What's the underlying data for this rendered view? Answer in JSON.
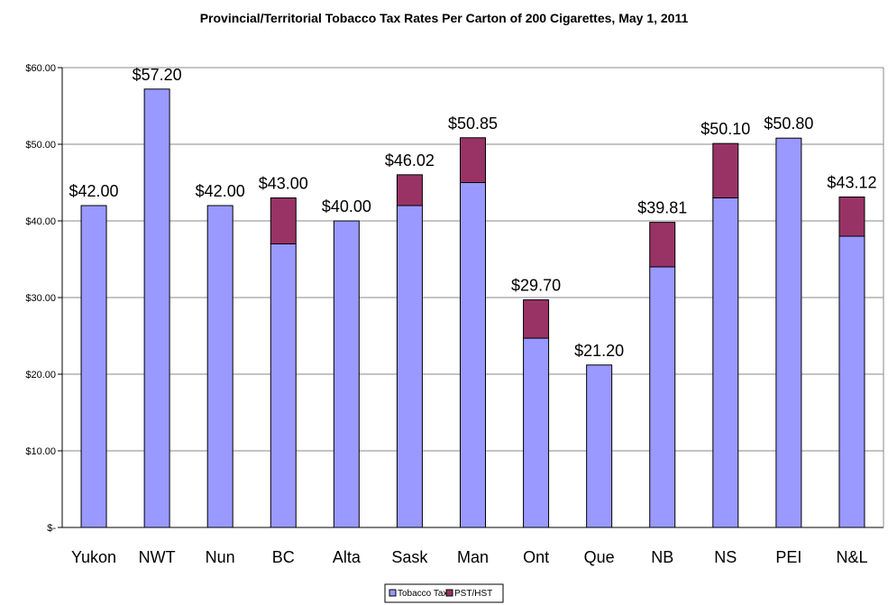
{
  "chart_data": {
    "type": "bar",
    "stacked": true,
    "title": "Provincial/Territorial Tobacco Tax Rates Per Carton of 200 Cigarettes, May 1, 2011",
    "xlabel": "",
    "ylabel": "",
    "ylim": [
      0,
      60
    ],
    "y_ticks": [
      "$-",
      "$10.00",
      "$20.00",
      "$30.00",
      "$40.00",
      "$50.00",
      "$60.00"
    ],
    "grid": true,
    "legend_position": "bottom",
    "categories": [
      "Yukon",
      "NWT",
      "Nun",
      "BC",
      "Alta",
      "Sask",
      "Man",
      "Ont",
      "Que",
      "NB",
      "NS",
      "PEI",
      "N&L"
    ],
    "series": [
      {
        "name": "Tobacco Tax",
        "color": "#9999ff",
        "values": [
          42.0,
          57.2,
          42.0,
          37.0,
          40.0,
          42.0,
          45.0,
          24.7,
          21.2,
          34.0,
          43.0,
          50.8,
          38.0
        ]
      },
      {
        "name": "PST/HST",
        "color": "#993366",
        "values": [
          0,
          0,
          0,
          6.0,
          0,
          4.02,
          5.85,
          5.0,
          0,
          5.81,
          7.1,
          0,
          5.12
        ]
      }
    ],
    "totals_labels": [
      "$42.00",
      "$57.20",
      "$42.00",
      "$43.00",
      "$40.00",
      "$46.02",
      "$50.85",
      "$29.70",
      "$21.20",
      "$39.81",
      "$50.10",
      "$50.80",
      "$43.12"
    ]
  }
}
